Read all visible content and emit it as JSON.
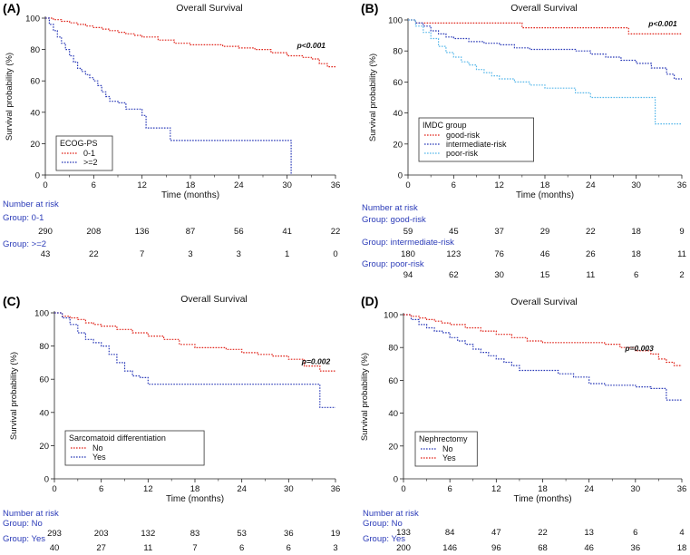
{
  "figure": {
    "title": "Kaplan-Meier overall survival panels"
  },
  "colors": {
    "red": "#e0251b",
    "blue": "#2b3bb8",
    "lightblue": "#58b8ea",
    "axis": "#222222",
    "risk_label": "#2b3bb8"
  },
  "chart_data": [
    {
      "type": "line",
      "step": true,
      "panel_label": "(A)",
      "title": "Overall Survival",
      "xlabel": "Time (months)",
      "ylabel": "Survival probability (%)",
      "xlim": [
        0,
        36
      ],
      "ylim": [
        0,
        100
      ],
      "x_ticks": [
        0,
        6,
        12,
        18,
        24,
        30,
        36
      ],
      "y_ticks": [
        0,
        20,
        40,
        60,
        80,
        100
      ],
      "p_value": "p<0.001",
      "p_position": [
        33,
        81
      ],
      "legend": {
        "title": "ECOG-PS",
        "placement": "lower-left"
      },
      "series": [
        {
          "name": "0-1",
          "color": "red",
          "points": [
            [
              0,
              100
            ],
            [
              1,
              99
            ],
            [
              2,
              98
            ],
            [
              3,
              97
            ],
            [
              4,
              96
            ],
            [
              5,
              95
            ],
            [
              6,
              94
            ],
            [
              7,
              93
            ],
            [
              8,
              92
            ],
            [
              9,
              91
            ],
            [
              10,
              90
            ],
            [
              11,
              89
            ],
            [
              12,
              88
            ],
            [
              14,
              86
            ],
            [
              16,
              84
            ],
            [
              18,
              83
            ],
            [
              20,
              83
            ],
            [
              22,
              82
            ],
            [
              24,
              81
            ],
            [
              26,
              80
            ],
            [
              28,
              78
            ],
            [
              30,
              76
            ],
            [
              32,
              75
            ],
            [
              33,
              74
            ],
            [
              34,
              71
            ],
            [
              35,
              69
            ],
            [
              36,
              69
            ]
          ]
        },
        {
          "name": ">=2",
          "color": "blue",
          "points": [
            [
              0,
              100
            ],
            [
              0.5,
              96
            ],
            [
              1,
              92
            ],
            [
              1.5,
              88
            ],
            [
              2,
              84
            ],
            [
              2.5,
              80
            ],
            [
              3,
              76
            ],
            [
              3.5,
              72
            ],
            [
              4,
              68
            ],
            [
              4.5,
              66
            ],
            [
              5,
              64
            ],
            [
              5.5,
              62
            ],
            [
              6,
              60
            ],
            [
              6.5,
              57
            ],
            [
              7,
              53
            ],
            [
              7.5,
              50
            ],
            [
              8,
              47
            ],
            [
              9,
              46
            ],
            [
              10,
              42
            ],
            [
              11,
              42
            ],
            [
              12,
              38
            ],
            [
              12.5,
              30
            ],
            [
              13,
              30
            ],
            [
              15,
              30
            ],
            [
              15.5,
              22
            ],
            [
              30.5,
              22
            ],
            [
              30.5,
              0
            ]
          ]
        }
      ],
      "risk_table": {
        "title": "Number at risk",
        "groups": [
          {
            "label": "Group: 0-1",
            "values": [
              290,
              208,
              136,
              87,
              56,
              41,
              22
            ]
          },
          {
            "label": "Group: >=2",
            "values": [
              43,
              22,
              7,
              3,
              3,
              1,
              0
            ]
          }
        ]
      }
    },
    {
      "type": "line",
      "step": true,
      "panel_label": "(B)",
      "title": "Overall Survival",
      "xlabel": "Time (months)",
      "ylabel": "Survival probability (%)",
      "xlim": [
        0,
        36
      ],
      "ylim": [
        0,
        100
      ],
      "x_ticks": [
        0,
        6,
        12,
        18,
        24,
        30,
        36
      ],
      "y_ticks": [
        0,
        20,
        40,
        60,
        80,
        100
      ],
      "p_value": "p<0.001",
      "p_position": [
        33.5,
        96
      ],
      "legend": {
        "title": "IMDC group",
        "placement": "lower-left"
      },
      "series": [
        {
          "name": "good-risk",
          "color": "red",
          "points": [
            [
              0,
              100
            ],
            [
              1,
              98
            ],
            [
              15,
              98
            ],
            [
              15,
              95
            ],
            [
              29,
              95
            ],
            [
              29,
              91
            ],
            [
              36,
              91
            ]
          ]
        },
        {
          "name": "intermediate-risk",
          "color": "blue",
          "points": [
            [
              0,
              100
            ],
            [
              1,
              98
            ],
            [
              2,
              96
            ],
            [
              3,
              93
            ],
            [
              4,
              91
            ],
            [
              5,
              89
            ],
            [
              6,
              88
            ],
            [
              8,
              86
            ],
            [
              10,
              85
            ],
            [
              12,
              84
            ],
            [
              14,
              82
            ],
            [
              16,
              81
            ],
            [
              18,
              81
            ],
            [
              22,
              80
            ],
            [
              24,
              78
            ],
            [
              26,
              76
            ],
            [
              28,
              74
            ],
            [
              30,
              72
            ],
            [
              32,
              69
            ],
            [
              34,
              65
            ],
            [
              35,
              62
            ],
            [
              36,
              62
            ]
          ]
        },
        {
          "name": "poor-risk",
          "color": "lightblue",
          "points": [
            [
              0,
              100
            ],
            [
              1,
              96
            ],
            [
              2,
              92
            ],
            [
              3,
              88
            ],
            [
              4,
              83
            ],
            [
              5,
              79
            ],
            [
              6,
              76
            ],
            [
              7,
              73
            ],
            [
              8,
              71
            ],
            [
              9,
              68
            ],
            [
              10,
              66
            ],
            [
              11,
              64
            ],
            [
              12,
              62
            ],
            [
              14,
              60
            ],
            [
              16,
              58
            ],
            [
              18,
              56
            ],
            [
              20,
              56
            ],
            [
              22,
              53
            ],
            [
              24,
              50
            ],
            [
              32.5,
              50
            ],
            [
              32.5,
              33
            ],
            [
              36,
              33
            ]
          ]
        }
      ],
      "risk_table": {
        "title": "Number at risk",
        "groups": [
          {
            "label": "Group: good-risk",
            "values": [
              59,
              45,
              37,
              29,
              22,
              18,
              9
            ]
          },
          {
            "label": "Group: intermediate-risk",
            "values": [
              180,
              123,
              76,
              46,
              26,
              18,
              11
            ]
          },
          {
            "label": "Group: poor-risk",
            "values": [
              94,
              62,
              30,
              15,
              11,
              6,
              2
            ]
          }
        ]
      }
    },
    {
      "type": "line",
      "step": true,
      "panel_label": "(C)",
      "title": "Overall Survival",
      "xlabel": "Time (months)",
      "ylabel": "Survival probability (%)",
      "xlim": [
        0,
        36
      ],
      "ylim": [
        0,
        100
      ],
      "x_ticks": [
        0,
        6,
        12,
        18,
        24,
        30,
        36
      ],
      "y_ticks": [
        0,
        20,
        40,
        60,
        80,
        100
      ],
      "p_value": "p=0.002",
      "p_position": [
        33.5,
        69
      ],
      "legend": {
        "title": "Sarcomatoid differentiation",
        "placement": "lower-left"
      },
      "series": [
        {
          "name": "No",
          "color": "red",
          "points": [
            [
              0,
              100
            ],
            [
              1,
              98
            ],
            [
              2,
              97
            ],
            [
              3,
              96
            ],
            [
              4,
              94
            ],
            [
              5,
              93
            ],
            [
              6,
              92
            ],
            [
              8,
              90
            ],
            [
              10,
              88
            ],
            [
              12,
              86
            ],
            [
              14,
              84
            ],
            [
              16,
              81
            ],
            [
              18,
              79
            ],
            [
              20,
              79
            ],
            [
              22,
              78
            ],
            [
              24,
              76
            ],
            [
              26,
              75
            ],
            [
              28,
              74
            ],
            [
              30,
              72
            ],
            [
              32,
              68
            ],
            [
              34,
              65
            ],
            [
              36,
              65
            ]
          ]
        },
        {
          "name": "Yes",
          "color": "blue",
          "points": [
            [
              0,
              100
            ],
            [
              1,
              97
            ],
            [
              2,
              93
            ],
            [
              3,
              88
            ],
            [
              4,
              84
            ],
            [
              5,
              82
            ],
            [
              6,
              80
            ],
            [
              7,
              75
            ],
            [
              8,
              70
            ],
            [
              9,
              65
            ],
            [
              10,
              62
            ],
            [
              11,
              61
            ],
            [
              12,
              57
            ],
            [
              34,
              57
            ],
            [
              34,
              43
            ],
            [
              36,
              43
            ]
          ]
        }
      ],
      "risk_table": {
        "title": "Number at risk",
        "groups": [
          {
            "label": "Group: No",
            "values": [
              293,
              203,
              132,
              83,
              53,
              36,
              19
            ]
          },
          {
            "label": "Group: Yes",
            "values": [
              40,
              27,
              11,
              7,
              6,
              6,
              3
            ]
          }
        ]
      }
    },
    {
      "type": "line",
      "step": true,
      "panel_label": "(D)",
      "title": "Overall Survival",
      "xlabel": "Time (months)",
      "ylabel": "Survival probability (%)",
      "xlim": [
        0,
        36
      ],
      "ylim": [
        0,
        100
      ],
      "x_ticks": [
        0,
        6,
        12,
        18,
        24,
        30,
        36
      ],
      "y_ticks": [
        0,
        20,
        40,
        60,
        80,
        100
      ],
      "p_value": "p=0.003",
      "p_position": [
        30.5,
        78
      ],
      "legend": {
        "title": "Nephrectomy",
        "placement": "lower-left"
      },
      "series": [
        {
          "name": "No",
          "color": "blue",
          "points": [
            [
              0,
              100
            ],
            [
              1,
              97
            ],
            [
              2,
              94
            ],
            [
              3,
              92
            ],
            [
              4,
              90
            ],
            [
              5,
              89
            ],
            [
              6,
              86
            ],
            [
              7,
              84
            ],
            [
              8,
              82
            ],
            [
              9,
              79
            ],
            [
              10,
              77
            ],
            [
              11,
              75
            ],
            [
              12,
              73
            ],
            [
              13,
              71
            ],
            [
              14,
              69
            ],
            [
              15,
              66
            ],
            [
              18,
              66
            ],
            [
              20,
              64
            ],
            [
              22,
              62
            ],
            [
              24,
              58
            ],
            [
              26,
              57
            ],
            [
              30,
              56
            ],
            [
              32,
              55
            ],
            [
              34,
              48
            ],
            [
              36,
              48
            ]
          ]
        },
        {
          "name": "Yes",
          "color": "red",
          "points": [
            [
              0,
              100
            ],
            [
              1,
              99
            ],
            [
              2,
              98
            ],
            [
              3,
              97
            ],
            [
              4,
              96
            ],
            [
              5,
              95
            ],
            [
              6,
              94
            ],
            [
              8,
              92
            ],
            [
              10,
              90
            ],
            [
              12,
              88
            ],
            [
              14,
              86
            ],
            [
              16,
              84
            ],
            [
              18,
              83
            ],
            [
              20,
              83
            ],
            [
              24,
              83
            ],
            [
              26,
              82
            ],
            [
              28,
              80
            ],
            [
              30,
              78
            ],
            [
              32,
              76
            ],
            [
              33,
              73
            ],
            [
              34,
              71
            ],
            [
              35,
              69
            ],
            [
              36,
              69
            ]
          ]
        }
      ],
      "risk_table": {
        "title": "Number at risk",
        "groups": [
          {
            "label": "Group: No",
            "values": [
              133,
              84,
              47,
              22,
              13,
              6,
              4
            ]
          },
          {
            "label": "Group: Yes",
            "values": [
              200,
              146,
              96,
              68,
              46,
              36,
              18
            ]
          }
        ]
      }
    }
  ]
}
